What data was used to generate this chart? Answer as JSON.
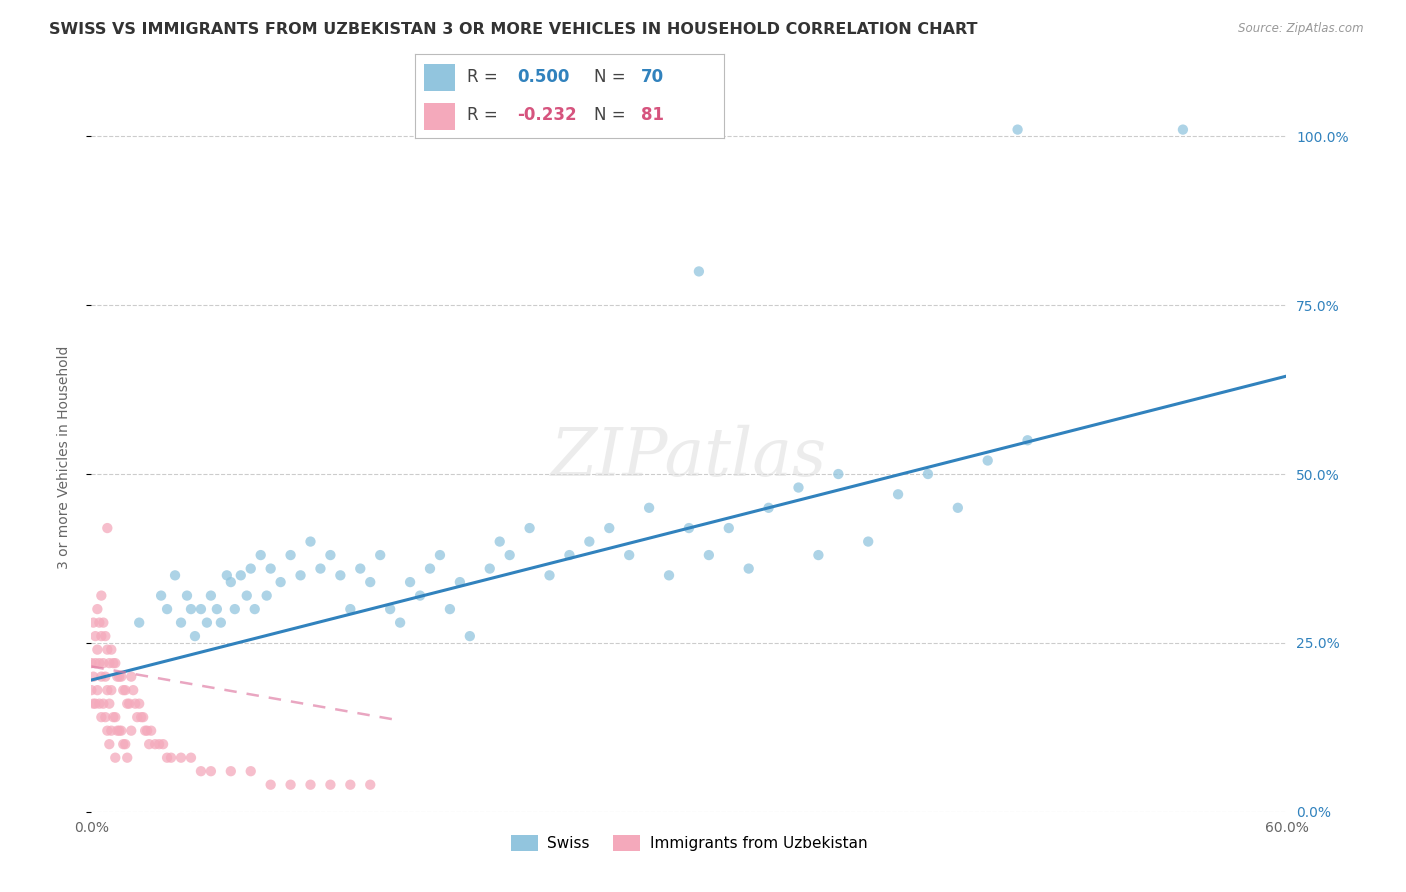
{
  "title": "SWISS VS IMMIGRANTS FROM UZBEKISTAN 3 OR MORE VEHICLES IN HOUSEHOLD CORRELATION CHART",
  "source": "Source: ZipAtlas.com",
  "ylabel": "3 or more Vehicles in Household",
  "x_min": 0.0,
  "x_max": 0.6,
  "y_min": 0.0,
  "y_max": 1.05,
  "x_tick_positions": [
    0.0,
    0.1,
    0.2,
    0.3,
    0.4,
    0.5,
    0.6
  ],
  "x_tick_labels": [
    "0.0%",
    "",
    "",
    "",
    "",
    "",
    "60.0%"
  ],
  "y_tick_labels_right": [
    "0.0%",
    "25.0%",
    "50.0%",
    "75.0%",
    "100.0%"
  ],
  "y_tick_positions_right": [
    0.0,
    0.25,
    0.5,
    0.75,
    1.0
  ],
  "swiss_R": 0.5,
  "swiss_N": 70,
  "uzbek_R": -0.232,
  "uzbek_N": 81,
  "swiss_color": "#92c5de",
  "uzbek_color": "#f4a9bb",
  "swiss_line_color": "#3182bd",
  "uzbek_line_color": "#de77a0",
  "legend_swiss_label": "Swiss",
  "legend_uzbek_label": "Immigrants from Uzbekistan",
  "watermark": "ZIPatlas",
  "swiss_line_x0": 0.0,
  "swiss_line_x1": 0.6,
  "swiss_line_y0": 0.195,
  "swiss_line_y1": 0.645,
  "uzbek_line_x0": 0.0,
  "uzbek_line_x1": 0.155,
  "uzbek_line_y0": 0.215,
  "uzbek_line_y1": 0.135,
  "background_color": "#ffffff",
  "grid_color": "#cccccc",
  "title_fontsize": 11.5,
  "axis_label_fontsize": 10,
  "tick_fontsize": 10,
  "right_tick_color": "#3182bd"
}
